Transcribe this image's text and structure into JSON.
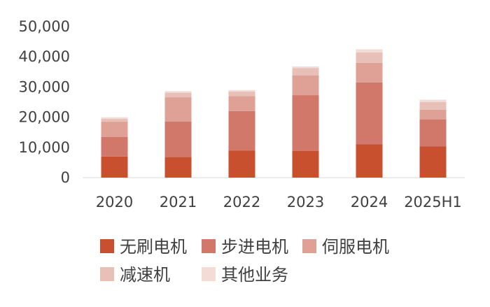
{
  "chart_data": {
    "type": "bar",
    "stacked": true,
    "categories": [
      "2020",
      "2021",
      "2022",
      "2023",
      "2024",
      "2025H1"
    ],
    "series": [
      {
        "name": "无刷电机",
        "color": "#c9502e",
        "values": [
          7000,
          6800,
          9000,
          8800,
          11000,
          10300
        ]
      },
      {
        "name": "步进电机",
        "color": "#d2786a",
        "values": [
          6500,
          11800,
          13000,
          18500,
          20500,
          9000
        ]
      },
      {
        "name": "伺服电机",
        "color": "#dfa095",
        "values": [
          5000,
          8000,
          5000,
          6500,
          6500,
          3200
        ]
      },
      {
        "name": "减速机",
        "color": "#e8c0b8",
        "values": [
          1000,
          1500,
          1500,
          2500,
          3500,
          2500
        ]
      },
      {
        "name": "其他业务",
        "color": "#f3dcd6",
        "values": [
          500,
          500,
          500,
          500,
          1000,
          800
        ]
      }
    ],
    "y_ticks": [
      "0",
      "10,000",
      "20,000",
      "30,000",
      "40,000",
      "50,000"
    ],
    "ylim": [
      0,
      50000
    ],
    "grid": false,
    "legend_position": "bottom"
  }
}
